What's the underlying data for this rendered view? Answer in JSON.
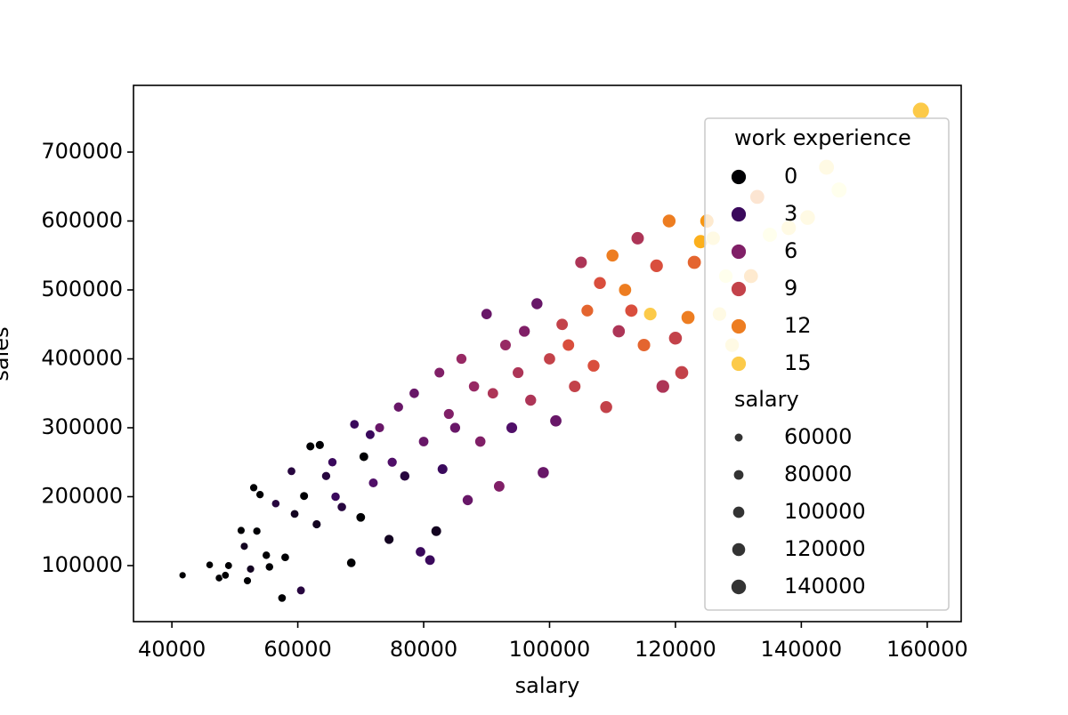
{
  "chart_data": {
    "type": "scatter",
    "xlabel": "salary",
    "ylabel": "sales",
    "xlim": [
      33900,
      165400
    ],
    "ylim": [
      18700,
      796800
    ],
    "xticks": [
      40000,
      60000,
      80000,
      100000,
      120000,
      140000,
      160000
    ],
    "yticks": [
      100000,
      200000,
      300000,
      400000,
      500000,
      600000,
      700000
    ],
    "colormap": [
      "#000004",
      "#420a68",
      "#932667",
      "#dd513a",
      "#fca50a",
      "#fcffa4"
    ],
    "hue_lim": [
      0,
      17
    ],
    "edge_color": "#ffffff",
    "legend_position": "right",
    "hue_title": "work experience",
    "hue_legend": [
      0,
      3,
      6,
      9,
      12,
      15
    ],
    "size_title": "salary",
    "size_legend": [
      60000,
      80000,
      100000,
      120000,
      140000
    ],
    "x": [
      41700,
      46000,
      47500,
      48500,
      49000,
      51000,
      51500,
      52000,
      52500,
      53000,
      53500,
      54000,
      55000,
      55500,
      56500,
      57500,
      58000,
      59000,
      59500,
      60500,
      61000,
      62000,
      63000,
      63500,
      64500,
      65500,
      66000,
      67000,
      68500,
      69000,
      70000,
      70500,
      71500,
      72000,
      73000,
      74500,
      75000,
      76000,
      77000,
      78500,
      79500,
      80000,
      81000,
      82000,
      82500,
      83000,
      84000,
      85000,
      86000,
      87000,
      88000,
      89000,
      90000,
      91000,
      92000,
      93000,
      94000,
      95000,
      96000,
      97000,
      98000,
      99000,
      100000,
      101000,
      102000,
      103000,
      104000,
      105000,
      106000,
      107000,
      108000,
      109000,
      110000,
      111000,
      112000,
      113000,
      114000,
      115000,
      116000,
      117000,
      118000,
      119000,
      120000,
      121000,
      122000,
      123000,
      124000,
      125000,
      126000,
      127000,
      128000,
      129000,
      130000,
      132000,
      133000,
      135000,
      138000,
      141000,
      144000,
      146000,
      159000
    ],
    "y": [
      86000,
      101000,
      82000,
      86000,
      100000,
      151000,
      128000,
      78000,
      95000,
      213000,
      150000,
      203000,
      115000,
      98000,
      190000,
      53000,
      112000,
      237000,
      175000,
      64000,
      201000,
      273000,
      160000,
      275000,
      230000,
      250000,
      200000,
      185000,
      104000,
      305000,
      170000,
      258000,
      290000,
      220000,
      300000,
      138000,
      250000,
      330000,
      230000,
      350000,
      120000,
      280000,
      108000,
      150000,
      380000,
      240000,
      320000,
      300000,
      400000,
      195000,
      360000,
      280000,
      465000,
      350000,
      215000,
      420000,
      300000,
      380000,
      440000,
      340000,
      480000,
      235000,
      400000,
      310000,
      450000,
      420000,
      360000,
      540000,
      470000,
      390000,
      510000,
      330000,
      550000,
      440000,
      500000,
      470000,
      575000,
      420000,
      465000,
      535000,
      360000,
      600000,
      430000,
      380000,
      460000,
      540000,
      570000,
      600000,
      575000,
      465000,
      520000,
      420000,
      610000,
      520000,
      635000,
      580000,
      590000,
      605000,
      678000,
      645000,
      760000
    ],
    "experience": [
      0,
      0,
      0,
      0,
      0,
      0,
      1,
      0,
      1,
      0,
      0,
      0,
      0,
      0,
      2,
      0,
      0,
      2,
      1,
      2,
      0,
      0,
      1,
      0,
      2,
      3,
      3,
      2,
      0,
      3,
      0,
      0,
      3,
      4,
      5,
      1,
      4,
      5,
      2,
      5,
      3,
      5,
      3,
      1,
      6,
      3,
      6,
      5,
      7,
      5,
      7,
      6,
      5,
      8,
      6,
      7,
      4,
      8,
      6,
      8,
      5,
      5,
      9,
      5,
      9,
      10,
      9,
      8,
      11,
      10,
      10,
      9,
      12,
      8,
      12,
      10,
      8,
      11,
      15,
      10,
      8,
      12,
      9,
      9,
      12,
      11,
      14,
      13,
      16,
      16,
      17,
      16,
      16,
      13,
      12,
      17,
      16,
      16,
      16,
      17,
      15
    ]
  }
}
